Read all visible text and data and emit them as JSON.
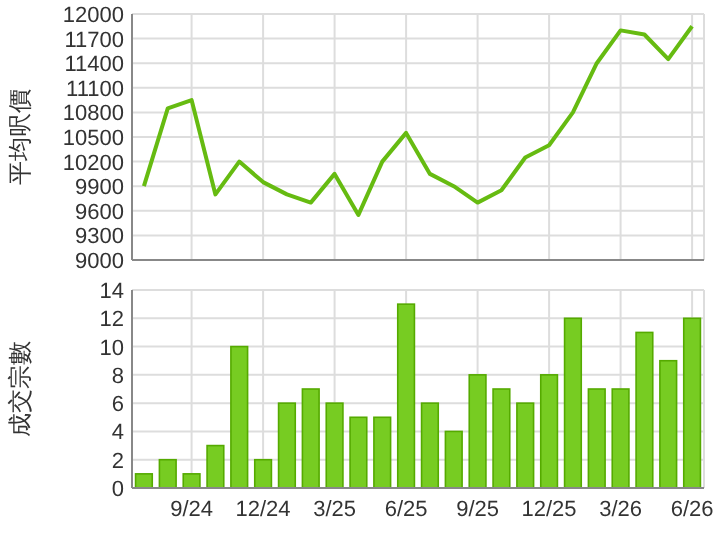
{
  "chart_data": [
    {
      "type": "line",
      "ylabel": "平均呎價",
      "categories": [
        null,
        null,
        null,
        null,
        null,
        null,
        null,
        null,
        null,
        null,
        null,
        null,
        null,
        null,
        null,
        null,
        null,
        null,
        null,
        null,
        null,
        null,
        null,
        null
      ],
      "series": [
        {
          "color": "#66bb11",
          "values": [
            9900,
            10850,
            10950,
            9800,
            10200,
            9950,
            9800,
            9700,
            10050,
            9550,
            10200,
            10550,
            10050,
            9900,
            9700,
            9850,
            10250,
            10400,
            10800,
            11400,
            11800,
            11750,
            11450,
            11850
          ]
        }
      ],
      "ylim": [
        9000,
        12000
      ],
      "yticks": [
        9000,
        9300,
        9600,
        9900,
        10200,
        10500,
        10800,
        11100,
        11400,
        11700,
        12000
      ],
      "grid": true,
      "tick_labels": "y",
      "marker": "none",
      "line_style": "solid"
    },
    {
      "type": "bar",
      "ylabel": "成交宗數",
      "categories": [
        null,
        null,
        "9/24",
        null,
        null,
        "12/24",
        null,
        null,
        "3/25",
        null,
        null,
        "6/25",
        null,
        null,
        "9/25",
        null,
        null,
        "12/25",
        null,
        null,
        "3/26",
        null,
        null,
        "6/26"
      ],
      "series": [
        {
          "color": "#77cc22",
          "values": [
            1,
            2,
            1,
            3,
            10,
            2,
            6,
            7,
            6,
            5,
            5,
            13,
            6,
            4,
            8,
            7,
            6,
            8,
            12,
            7,
            7,
            11,
            9,
            12
          ]
        }
      ],
      "ylim": [
        0,
        14
      ],
      "yticks": [
        0,
        2,
        4,
        6,
        8,
        10,
        12,
        14
      ],
      "grid": true
    }
  ]
}
